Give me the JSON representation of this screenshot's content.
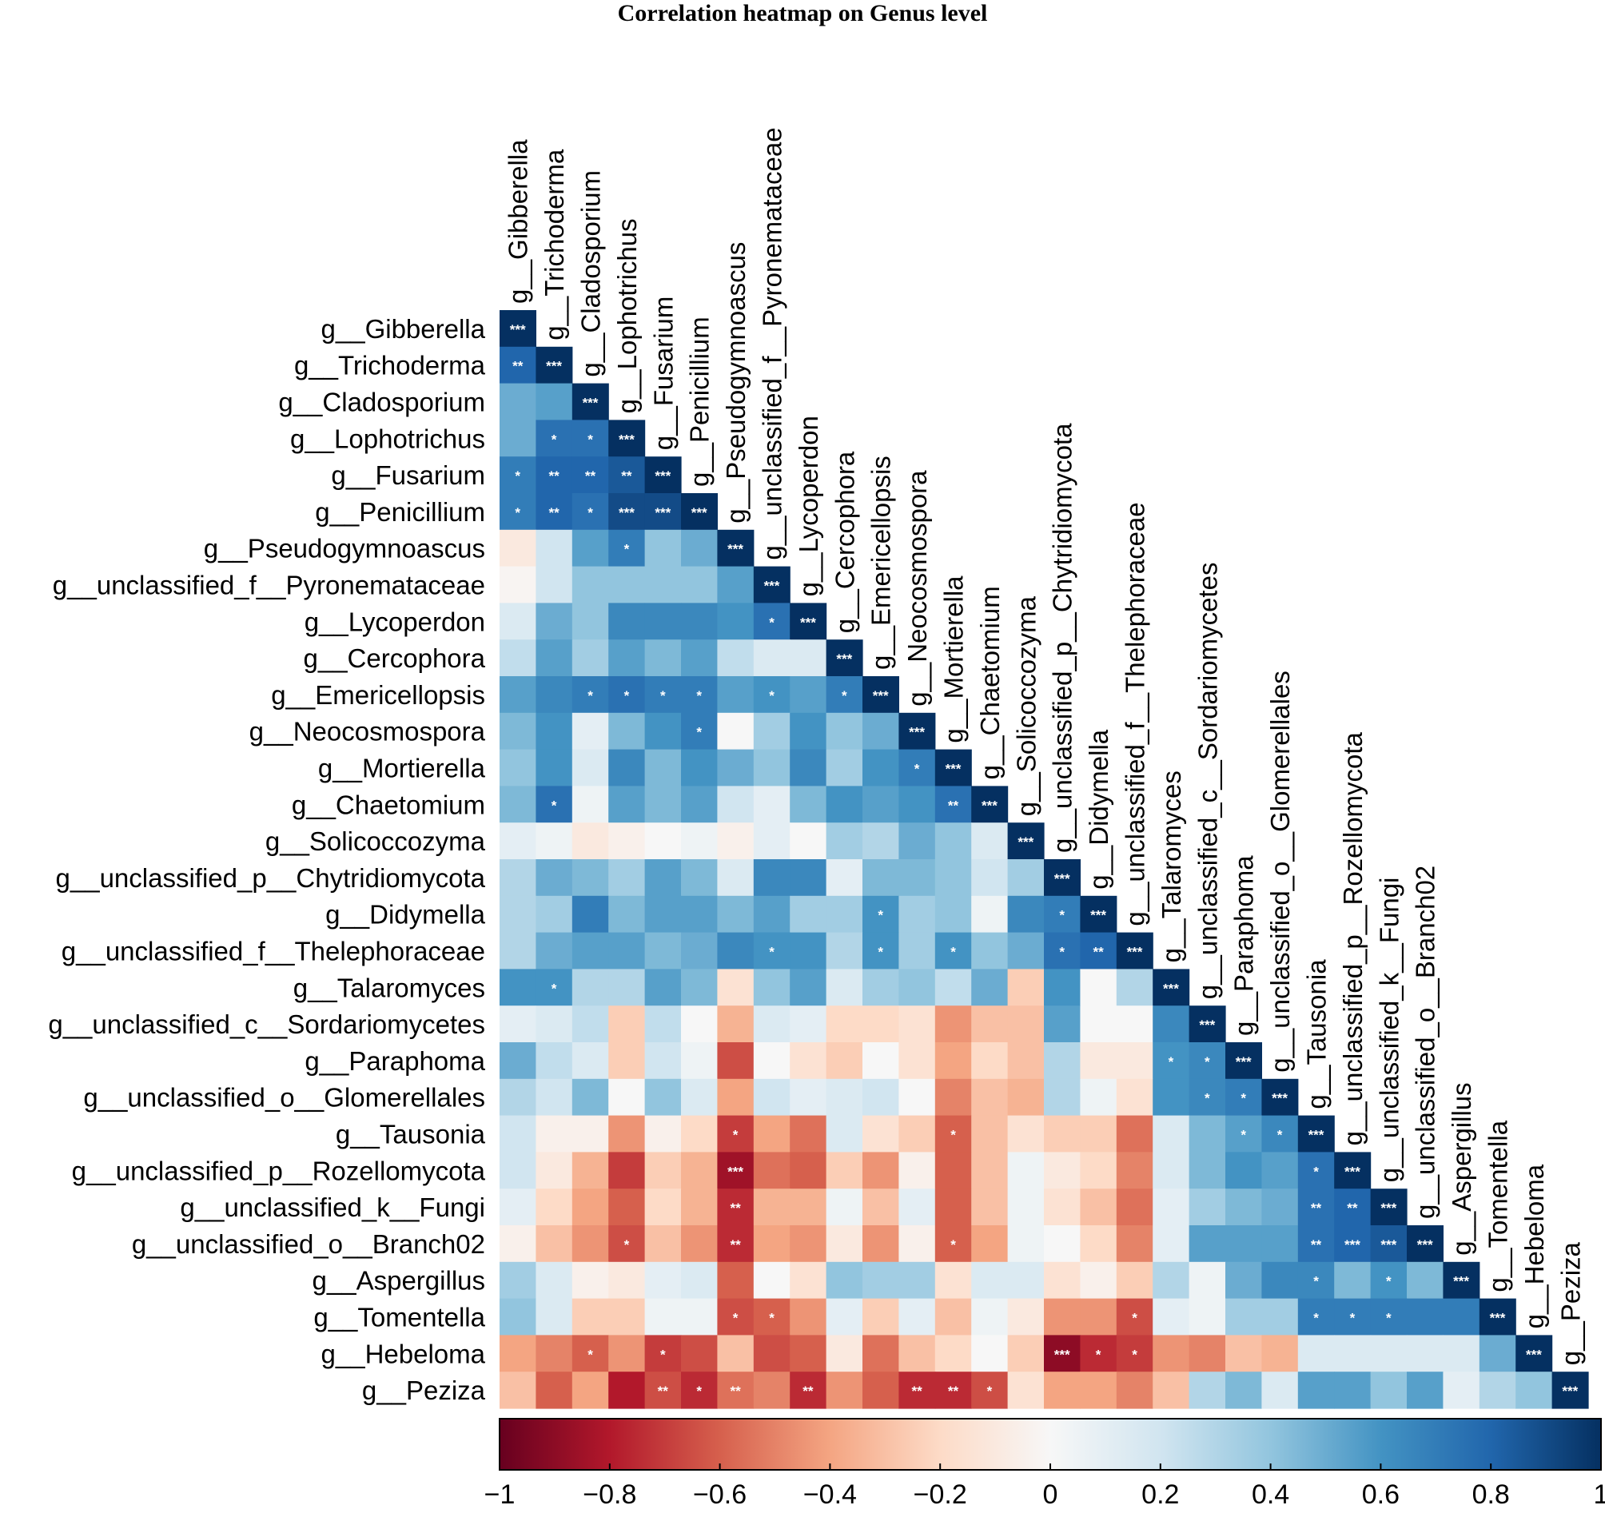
{
  "chart_data": {
    "type": "heatmap",
    "title": "Correlation heatmap on Genus level",
    "labels": [
      "g__Gibberella",
      "g__Trichoderma",
      "g__Cladosporium",
      "g__Lophotrichus",
      "g__Fusarium",
      "g__Penicillium",
      "g__Pseudogymnoascus",
      "g__unclassified_f__Pyronemataceae",
      "g__Lycoperdon",
      "g__Cercophora",
      "g__Emericellopsis",
      "g__Neocosmospora",
      "g__Mortierella",
      "g__Chaetomium",
      "g__Solicoccozyma",
      "g__unclassified_p__Chytridiomycota",
      "g__Didymella",
      "g__unclassified_f__Thelephoraceae",
      "g__Talaromyces",
      "g__unclassified_c__Sordariomycetes",
      "g__Paraphoma",
      "g__unclassified_o__Glomerellales",
      "g__Tausonia",
      "g__unclassified_p__Rozellomycota",
      "g__unclassified_k__Fungi",
      "g__unclassified_o__Branch02",
      "g__Aspergillus",
      "g__Tomentella",
      "g__Hebeloma",
      "g__Peziza"
    ],
    "matrix": [
      [
        1
      ],
      [
        0.8,
        1
      ],
      [
        0.5,
        0.55,
        1
      ],
      [
        0.5,
        0.75,
        0.75,
        1
      ],
      [
        0.7,
        0.8,
        0.8,
        0.85,
        1
      ],
      [
        0.7,
        0.8,
        0.75,
        0.9,
        0.9,
        1
      ],
      [
        -0.1,
        0.2,
        0.55,
        0.7,
        0.4,
        0.5,
        1
      ],
      [
        -0.02,
        0.2,
        0.4,
        0.4,
        0.4,
        0.4,
        0.55,
        1
      ],
      [
        0.15,
        0.5,
        0.4,
        0.65,
        0.65,
        0.65,
        0.6,
        0.75,
        1
      ],
      [
        0.25,
        0.55,
        0.35,
        0.55,
        0.45,
        0.55,
        0.25,
        0.15,
        0.15,
        1
      ],
      [
        0.55,
        0.65,
        0.7,
        0.75,
        0.7,
        0.7,
        0.55,
        0.6,
        0.55,
        0.7,
        1
      ],
      [
        0.45,
        0.6,
        0.1,
        0.45,
        0.6,
        0.7,
        0.0,
        0.35,
        0.6,
        0.4,
        0.5,
        1
      ],
      [
        0.4,
        0.6,
        0.15,
        0.65,
        0.45,
        0.6,
        0.5,
        0.4,
        0.65,
        0.35,
        0.6,
        0.7,
        1
      ],
      [
        0.45,
        0.75,
        0.05,
        0.55,
        0.45,
        0.55,
        0.2,
        0.1,
        0.45,
        0.6,
        0.55,
        0.6,
        0.75,
        1
      ],
      [
        0.1,
        0.05,
        -0.1,
        -0.05,
        0.0,
        0.05,
        -0.05,
        0.1,
        0.0,
        0.35,
        0.3,
        0.5,
        0.4,
        0.15,
        1
      ],
      [
        0.3,
        0.5,
        0.45,
        0.35,
        0.55,
        0.45,
        0.15,
        0.65,
        0.65,
        0.1,
        0.45,
        0.45,
        0.4,
        0.2,
        0.35,
        1
      ],
      [
        0.3,
        0.35,
        0.7,
        0.45,
        0.55,
        0.55,
        0.45,
        0.55,
        0.35,
        0.35,
        0.6,
        0.35,
        0.4,
        0.05,
        0.65,
        0.7,
        1
      ],
      [
        0.3,
        0.5,
        0.55,
        0.55,
        0.45,
        0.5,
        0.65,
        0.6,
        0.6,
        0.3,
        0.6,
        0.35,
        0.6,
        0.4,
        0.5,
        0.75,
        0.8,
        1
      ],
      [
        0.6,
        0.6,
        0.3,
        0.3,
        0.55,
        0.45,
        -0.15,
        0.4,
        0.55,
        0.15,
        0.35,
        0.4,
        0.25,
        0.5,
        -0.25,
        0.6,
        0.0,
        0.3,
        1
      ],
      [
        0.1,
        0.15,
        0.25,
        -0.25,
        0.25,
        0.0,
        -0.35,
        0.15,
        0.1,
        -0.2,
        -0.2,
        -0.15,
        -0.45,
        -0.3,
        -0.3,
        0.55,
        0.0,
        0.0,
        0.65,
        1
      ],
      [
        0.5,
        0.25,
        0.15,
        -0.25,
        0.2,
        0.05,
        -0.65,
        0.0,
        -0.15,
        -0.25,
        0.0,
        -0.15,
        -0.4,
        -0.2,
        -0.3,
        0.3,
        -0.1,
        -0.1,
        0.6,
        0.65,
        1
      ],
      [
        0.3,
        0.2,
        0.45,
        0.0,
        0.4,
        0.15,
        -0.4,
        0.2,
        0.1,
        0.15,
        0.2,
        0.0,
        -0.5,
        -0.3,
        -0.35,
        0.3,
        0.05,
        -0.15,
        0.6,
        0.65,
        0.7,
        1
      ],
      [
        0.2,
        -0.05,
        -0.05,
        -0.45,
        -0.05,
        -0.2,
        -0.7,
        -0.4,
        -0.55,
        0.15,
        -0.15,
        -0.25,
        -0.6,
        -0.3,
        -0.15,
        -0.25,
        -0.25,
        -0.55,
        0.15,
        0.45,
        0.55,
        0.65,
        1
      ],
      [
        0.2,
        -0.1,
        -0.35,
        -0.7,
        -0.25,
        -0.35,
        -0.85,
        -0.55,
        -0.6,
        -0.25,
        -0.45,
        -0.05,
        -0.6,
        -0.3,
        0.05,
        -0.1,
        -0.2,
        -0.5,
        0.15,
        0.45,
        0.6,
        0.55,
        0.75,
        1
      ],
      [
        0.1,
        -0.2,
        -0.4,
        -0.6,
        -0.2,
        -0.35,
        -0.75,
        -0.35,
        -0.35,
        0.05,
        -0.3,
        0.1,
        -0.6,
        -0.3,
        0.05,
        -0.15,
        -0.3,
        -0.55,
        0.1,
        0.35,
        0.45,
        0.5,
        0.75,
        0.8,
        1
      ],
      [
        -0.05,
        -0.3,
        -0.45,
        -0.65,
        -0.3,
        -0.45,
        -0.75,
        -0.4,
        -0.45,
        -0.1,
        -0.45,
        -0.05,
        -0.6,
        -0.4,
        0.05,
        0.0,
        -0.2,
        -0.5,
        0.1,
        0.55,
        0.55,
        0.55,
        0.75,
        0.8,
        0.85,
        1
      ],
      [
        0.35,
        0.15,
        -0.05,
        -0.1,
        0.1,
        0.15,
        -0.6,
        0.0,
        -0.15,
        0.4,
        0.35,
        0.35,
        -0.15,
        0.15,
        0.15,
        -0.15,
        -0.05,
        -0.25,
        0.3,
        0.05,
        0.5,
        0.65,
        0.65,
        0.45,
        0.6,
        0.45,
        1
      ],
      [
        0.4,
        0.15,
        -0.25,
        -0.25,
        0.05,
        0.05,
        -0.65,
        -0.6,
        -0.45,
        0.1,
        -0.25,
        0.1,
        -0.3,
        0.05,
        -0.1,
        -0.45,
        -0.45,
        -0.65,
        0.1,
        0.05,
        0.35,
        0.35,
        0.7,
        0.7,
        0.7,
        0.7,
        0.7,
        1
      ],
      [
        -0.4,
        -0.5,
        -0.6,
        -0.45,
        -0.7,
        -0.65,
        -0.3,
        -0.65,
        -0.6,
        -0.1,
        -0.55,
        -0.3,
        -0.2,
        0.0,
        -0.25,
        -0.9,
        -0.75,
        -0.7,
        -0.45,
        -0.5,
        -0.3,
        -0.35,
        0.15,
        0.15,
        0.15,
        0.15,
        0.15,
        0.5,
        1
      ],
      [
        -0.3,
        -0.6,
        -0.4,
        -0.8,
        -0.65,
        -0.75,
        -0.55,
        -0.5,
        -0.75,
        -0.45,
        -0.6,
        -0.75,
        -0.75,
        -0.65,
        -0.15,
        -0.4,
        -0.4,
        -0.5,
        -0.3,
        0.3,
        0.45,
        0.15,
        0.55,
        0.55,
        0.4,
        0.55,
        0.1,
        0.3,
        0.4,
        1
      ]
    ],
    "significance": [
      [
        1,
        1,
        "***"
      ],
      [
        2,
        1,
        "**"
      ],
      [
        2,
        2,
        "***"
      ],
      [
        3,
        3,
        "***"
      ],
      [
        4,
        2,
        "*"
      ],
      [
        4,
        3,
        "*"
      ],
      [
        4,
        4,
        "***"
      ],
      [
        5,
        1,
        "*"
      ],
      [
        5,
        2,
        "**"
      ],
      [
        5,
        3,
        "**"
      ],
      [
        5,
        4,
        "**"
      ],
      [
        5,
        5,
        "***"
      ],
      [
        6,
        1,
        "*"
      ],
      [
        6,
        2,
        "**"
      ],
      [
        6,
        3,
        "*"
      ],
      [
        6,
        4,
        "***"
      ],
      [
        6,
        5,
        "***"
      ],
      [
        6,
        6,
        "***"
      ],
      [
        7,
        4,
        "*"
      ],
      [
        7,
        7,
        "***"
      ],
      [
        8,
        8,
        "***"
      ],
      [
        9,
        8,
        "*"
      ],
      [
        9,
        9,
        "***"
      ],
      [
        10,
        10,
        "***"
      ],
      [
        11,
        3,
        "*"
      ],
      [
        11,
        4,
        "*"
      ],
      [
        11,
        5,
        "*"
      ],
      [
        11,
        6,
        "*"
      ],
      [
        11,
        8,
        "*"
      ],
      [
        11,
        10,
        "*"
      ],
      [
        11,
        11,
        "***"
      ],
      [
        12,
        6,
        "*"
      ],
      [
        12,
        12,
        "***"
      ],
      [
        13,
        12,
        "*"
      ],
      [
        13,
        13,
        "***"
      ],
      [
        14,
        2,
        "*"
      ],
      [
        14,
        13,
        "**"
      ],
      [
        14,
        14,
        "***"
      ],
      [
        15,
        15,
        "***"
      ],
      [
        16,
        16,
        "***"
      ],
      [
        17,
        11,
        "*"
      ],
      [
        17,
        16,
        "*"
      ],
      [
        17,
        17,
        "***"
      ],
      [
        18,
        8,
        "*"
      ],
      [
        18,
        11,
        "*"
      ],
      [
        18,
        13,
        "*"
      ],
      [
        18,
        16,
        "*"
      ],
      [
        18,
        17,
        "**"
      ],
      [
        18,
        18,
        "***"
      ],
      [
        19,
        2,
        "*"
      ],
      [
        19,
        19,
        "***"
      ],
      [
        20,
        20,
        "***"
      ],
      [
        21,
        19,
        "*"
      ],
      [
        21,
        20,
        "*"
      ],
      [
        21,
        21,
        "***"
      ],
      [
        22,
        20,
        "*"
      ],
      [
        22,
        21,
        "*"
      ],
      [
        22,
        22,
        "***"
      ],
      [
        23,
        7,
        "*"
      ],
      [
        23,
        13,
        "*"
      ],
      [
        23,
        21,
        "*"
      ],
      [
        23,
        22,
        "*"
      ],
      [
        23,
        23,
        "***"
      ],
      [
        24,
        7,
        "***"
      ],
      [
        24,
        23,
        "*"
      ],
      [
        24,
        24,
        "***"
      ],
      [
        25,
        7,
        "**"
      ],
      [
        25,
        23,
        "**"
      ],
      [
        25,
        24,
        "**"
      ],
      [
        25,
        25,
        "***"
      ],
      [
        26,
        4,
        "*"
      ],
      [
        26,
        7,
        "**"
      ],
      [
        26,
        13,
        "*"
      ],
      [
        26,
        23,
        "**"
      ],
      [
        26,
        24,
        "***"
      ],
      [
        26,
        25,
        "***"
      ],
      [
        26,
        26,
        "***"
      ],
      [
        27,
        23,
        "*"
      ],
      [
        27,
        25,
        "*"
      ],
      [
        27,
        27,
        "***"
      ],
      [
        28,
        7,
        "*"
      ],
      [
        28,
        8,
        "*"
      ],
      [
        28,
        18,
        "*"
      ],
      [
        28,
        23,
        "*"
      ],
      [
        28,
        24,
        "*"
      ],
      [
        28,
        25,
        "*"
      ],
      [
        28,
        28,
        "***"
      ],
      [
        29,
        3,
        "*"
      ],
      [
        29,
        5,
        "*"
      ],
      [
        29,
        16,
        "***"
      ],
      [
        29,
        17,
        "*"
      ],
      [
        29,
        18,
        "*"
      ],
      [
        29,
        29,
        "***"
      ],
      [
        30,
        5,
        "**"
      ],
      [
        30,
        6,
        "*"
      ],
      [
        30,
        7,
        "**"
      ],
      [
        30,
        9,
        "**"
      ],
      [
        30,
        12,
        "**"
      ],
      [
        30,
        13,
        "**"
      ],
      [
        30,
        14,
        "*"
      ],
      [
        30,
        30,
        "***"
      ]
    ],
    "colorbar": {
      "min": -1,
      "max": 1,
      "ticks": [
        "−1",
        "−0.8",
        "−0.6",
        "−0.4",
        "−0.2",
        "0",
        "0.2",
        "0.4",
        "0.6",
        "0.8",
        "1"
      ],
      "stops": [
        "#67001f",
        "#b2182b",
        "#d6604d",
        "#f4a582",
        "#fddbc7",
        "#f7f7f7",
        "#d1e5f0",
        "#92c5de",
        "#4393c3",
        "#2166ac",
        "#053061"
      ]
    }
  }
}
